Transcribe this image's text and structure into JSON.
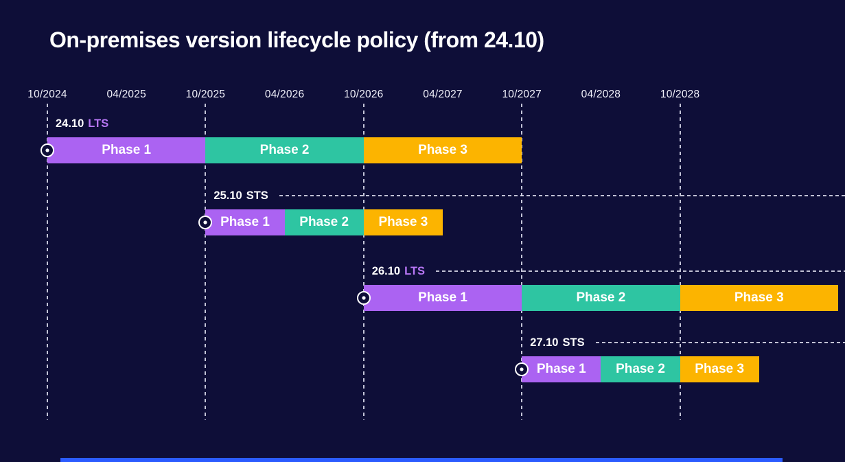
{
  "title": "On-premises version lifecycle policy (from 24.10)",
  "colors": {
    "background": "#0e0e38",
    "phase_colors": [
      "#ab63f2",
      "#2ec5a2",
      "#fcb400"
    ],
    "lts_tag": "#b877f6",
    "sts_tag": "#ffffff",
    "grid_line": "#e4e5f4",
    "footer_bar": "#2b5bff",
    "text": "#ffffff"
  },
  "chart_data": {
    "type": "gantt",
    "title": "On-premises version lifecycle policy (from 24.10)",
    "time_axis": {
      "ticks": [
        "10/2024",
        "04/2025",
        "10/2025",
        "04/2026",
        "10/2026",
        "04/2027",
        "10/2027",
        "04/2028",
        "10/2028"
      ],
      "gridlines": [
        "10/2024",
        "10/2025",
        "10/2026",
        "10/2027",
        "10/2028"
      ],
      "origin": "10/2024",
      "months_per_tick": 6
    },
    "rows": [
      {
        "version": "24.10",
        "tag": "LTS",
        "start": "10/2024",
        "label_dashed_line": false,
        "phases": [
          {
            "name": "Phase 1",
            "duration_months": 12
          },
          {
            "name": "Phase 2",
            "duration_months": 12
          },
          {
            "name": "Phase 3",
            "duration_months": 12
          }
        ]
      },
      {
        "version": "25.10",
        "tag": "STS",
        "start": "10/2025",
        "label_dashed_line": true,
        "phases": [
          {
            "name": "Phase 1",
            "duration_months": 6
          },
          {
            "name": "Phase 2",
            "duration_months": 6
          },
          {
            "name": "Phase 3",
            "duration_months": 6
          }
        ]
      },
      {
        "version": "26.10",
        "tag": "LTS",
        "start": "10/2026",
        "label_dashed_line": true,
        "phases": [
          {
            "name": "Phase 1",
            "duration_months": 12
          },
          {
            "name": "Phase 2",
            "duration_months": 12
          },
          {
            "name": "Phase 3",
            "duration_months": 12
          }
        ]
      },
      {
        "version": "27.10",
        "tag": "STS",
        "start": "10/2027",
        "label_dashed_line": true,
        "phases": [
          {
            "name": "Phase 1",
            "duration_months": 6
          },
          {
            "name": "Phase 2",
            "duration_months": 6
          },
          {
            "name": "Phase 3",
            "duration_months": 6
          }
        ]
      }
    ]
  }
}
